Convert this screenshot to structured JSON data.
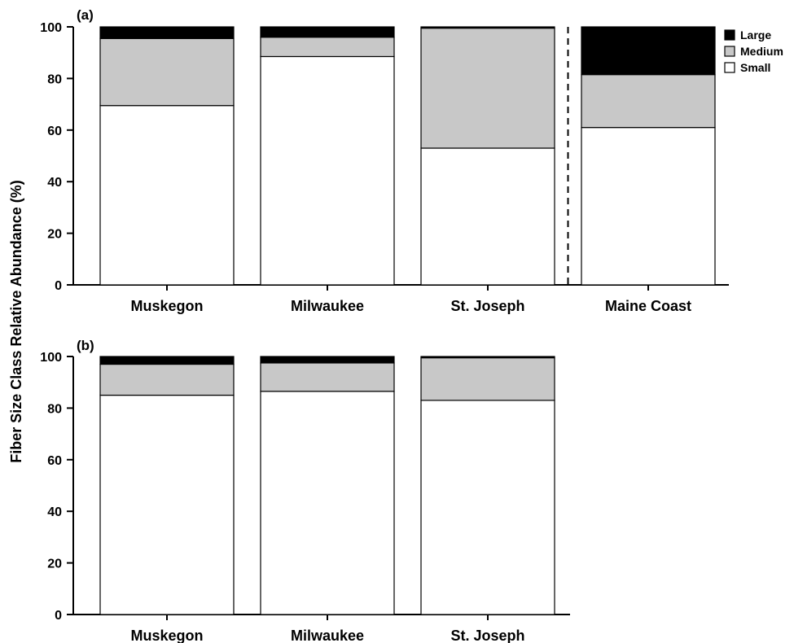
{
  "ylabel": "Fiber Size Class Relative Abundance (%)",
  "legend": [
    {
      "name": "Large",
      "color": "#000000"
    },
    {
      "name": "Medium",
      "color": "#c8c8c8"
    },
    {
      "name": "Small",
      "color": "#ffffff"
    }
  ],
  "chart_data": [
    {
      "type": "bar",
      "stacked": true,
      "panel_label": "(a)",
      "categories": [
        "Muskegon",
        "Milwaukee",
        "St. Joseph",
        "Maine Coast"
      ],
      "series": [
        {
          "name": "Small",
          "values": [
            69.5,
            88.5,
            53,
            61
          ]
        },
        {
          "name": "Medium",
          "values": [
            26,
            7.5,
            46.5,
            20.5
          ]
        },
        {
          "name": "Large",
          "values": [
            4.5,
            4,
            0.5,
            18.5
          ]
        }
      ],
      "ylim": [
        0,
        100
      ],
      "yticks": [
        0,
        20,
        40,
        60,
        80,
        100
      ],
      "divider_before_category": 3,
      "legend_position": "top-right"
    },
    {
      "type": "bar",
      "stacked": true,
      "panel_label": "(b)",
      "categories": [
        "Muskegon",
        "Milwaukee",
        "St. Joseph"
      ],
      "series": [
        {
          "name": "Small",
          "values": [
            85,
            86.5,
            83
          ]
        },
        {
          "name": "Medium",
          "values": [
            12,
            11,
            16.5
          ]
        },
        {
          "name": "Large",
          "values": [
            3,
            2.5,
            0.5
          ]
        }
      ],
      "ylim": [
        0,
        100
      ],
      "yticks": [
        0,
        20,
        40,
        60,
        80,
        100
      ]
    }
  ]
}
